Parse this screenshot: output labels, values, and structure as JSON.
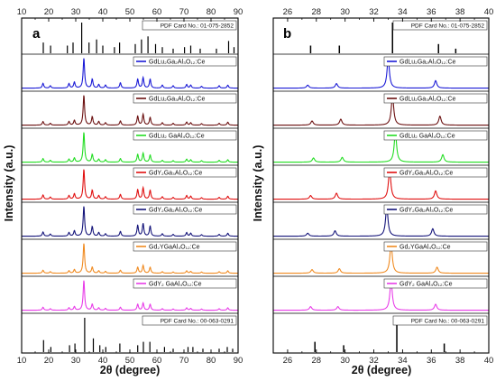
{
  "chart_data": [
    {
      "type": "line",
      "panel_label": "a",
      "xlabel": "2θ (degree)",
      "ylabel": "Intensity (a.u.)",
      "xlim": [
        10,
        90
      ],
      "xticks": [
        10,
        20,
        30,
        40,
        50,
        60,
        70,
        80,
        90
      ],
      "top_ticks": true,
      "grid": false,
      "legend_placement": "top-right of each strip",
      "reference_top": {
        "name": "PDF Card No.: 01-075-2852",
        "peaks": [
          [
            18.0,
            0.35
          ],
          [
            20.7,
            0.25
          ],
          [
            26.9,
            0.25
          ],
          [
            29.0,
            0.35
          ],
          [
            32.2,
            1.0
          ],
          [
            34.9,
            0.35
          ],
          [
            37.7,
            0.45
          ],
          [
            40.0,
            0.25
          ],
          [
            44.3,
            0.2
          ],
          [
            46.2,
            0.35
          ],
          [
            52.0,
            0.3
          ],
          [
            54.3,
            0.45
          ],
          [
            56.7,
            0.55
          ],
          [
            59.5,
            0.3
          ],
          [
            62.0,
            0.2
          ],
          [
            66.0,
            0.15
          ],
          [
            70.2,
            0.2
          ],
          [
            72.5,
            0.25
          ],
          [
            76.0,
            0.15
          ],
          [
            82.0,
            0.15
          ],
          [
            86.5,
            0.4
          ],
          [
            88.5,
            0.2
          ]
        ]
      },
      "series": [
        {
          "name": "GdLu₂Ga₂Al₃O₁₂:Ce",
          "color": "#1a1ad6",
          "peaks": [
            [
              17.9,
              0.16
            ],
            [
              20.6,
              0.08
            ],
            [
              27.5,
              0.15
            ],
            [
              29.5,
              0.2
            ],
            [
              33.0,
              1.0
            ],
            [
              36.1,
              0.3
            ],
            [
              38.5,
              0.12
            ],
            [
              41.0,
              0.1
            ],
            [
              46.5,
              0.18
            ],
            [
              52.9,
              0.3
            ],
            [
              54.9,
              0.35
            ],
            [
              57.5,
              0.3
            ],
            [
              62.0,
              0.1
            ],
            [
              66.0,
              0.08
            ],
            [
              71.0,
              0.12
            ],
            [
              72.5,
              0.1
            ],
            [
              76.5,
              0.06
            ],
            [
              83.0,
              0.08
            ],
            [
              86.2,
              0.1
            ]
          ]
        },
        {
          "name": "GdLu₂Ga₃Al₂O₁₂:Ce",
          "color": "#6b1010",
          "peaks": [
            [
              17.9,
              0.12
            ],
            [
              20.6,
              0.06
            ],
            [
              27.5,
              0.12
            ],
            [
              29.5,
              0.16
            ],
            [
              33.0,
              1.0
            ],
            [
              36.1,
              0.28
            ],
            [
              38.5,
              0.12
            ],
            [
              41.0,
              0.08
            ],
            [
              46.5,
              0.14
            ],
            [
              52.9,
              0.3
            ],
            [
              54.9,
              0.36
            ],
            [
              57.5,
              0.26
            ],
            [
              62.0,
              0.08
            ],
            [
              66.0,
              0.06
            ],
            [
              71.0,
              0.1
            ],
            [
              72.5,
              0.08
            ],
            [
              76.5,
              0.05
            ],
            [
              83.0,
              0.06
            ],
            [
              86.2,
              0.1
            ]
          ]
        },
        {
          "name": "GdLu₂ GaAl₄O₁₂:Ce",
          "color": "#22dd22",
          "peaks": [
            [
              17.9,
              0.12
            ],
            [
              20.6,
              0.06
            ],
            [
              27.5,
              0.1
            ],
            [
              29.5,
              0.14
            ],
            [
              33.0,
              1.0
            ],
            [
              36.1,
              0.26
            ],
            [
              38.5,
              0.1
            ],
            [
              41.0,
              0.08
            ],
            [
              46.5,
              0.12
            ],
            [
              52.9,
              0.26
            ],
            [
              54.9,
              0.3
            ],
            [
              57.5,
              0.24
            ],
            [
              62.0,
              0.06
            ],
            [
              66.0,
              0.05
            ],
            [
              71.0,
              0.1
            ],
            [
              72.5,
              0.08
            ],
            [
              76.5,
              0.05
            ],
            [
              83.0,
              0.06
            ],
            [
              86.2,
              0.08
            ]
          ]
        },
        {
          "name": "GdY₂Ga₃Al₂O₁₂:Ce",
          "color": "#e01010",
          "peaks": [
            [
              17.9,
              0.14
            ],
            [
              20.6,
              0.07
            ],
            [
              27.5,
              0.12
            ],
            [
              29.5,
              0.18
            ],
            [
              33.0,
              1.0
            ],
            [
              36.1,
              0.3
            ],
            [
              38.5,
              0.12
            ],
            [
              41.0,
              0.08
            ],
            [
              46.5,
              0.16
            ],
            [
              52.9,
              0.32
            ],
            [
              54.9,
              0.38
            ],
            [
              57.5,
              0.3
            ],
            [
              62.0,
              0.08
            ],
            [
              66.0,
              0.06
            ],
            [
              71.0,
              0.12
            ],
            [
              72.5,
              0.1
            ],
            [
              76.5,
              0.05
            ],
            [
              83.0,
              0.06
            ],
            [
              86.2,
              0.1
            ]
          ]
        },
        {
          "name": "GdY₂Ga₂Al₃O₁₂:Ce",
          "color": "#14147a",
          "peaks": [
            [
              17.9,
              0.14
            ],
            [
              20.6,
              0.07
            ],
            [
              27.5,
              0.12
            ],
            [
              29.5,
              0.18
            ],
            [
              33.0,
              1.0
            ],
            [
              36.1,
              0.32
            ],
            [
              38.5,
              0.12
            ],
            [
              41.0,
              0.08
            ],
            [
              46.5,
              0.16
            ],
            [
              52.9,
              0.36
            ],
            [
              54.9,
              0.42
            ],
            [
              57.5,
              0.34
            ],
            [
              62.0,
              0.08
            ],
            [
              66.0,
              0.06
            ],
            [
              71.0,
              0.12
            ],
            [
              72.5,
              0.1
            ],
            [
              76.5,
              0.05
            ],
            [
              83.0,
              0.06
            ],
            [
              86.2,
              0.1
            ]
          ]
        },
        {
          "name": "Gd₂YGaAl₄O₁₂:Ce",
          "color": "#f08a20",
          "peaks": [
            [
              17.9,
              0.1
            ],
            [
              20.6,
              0.05
            ],
            [
              27.5,
              0.08
            ],
            [
              29.5,
              0.12
            ],
            [
              33.0,
              1.0
            ],
            [
              36.1,
              0.2
            ],
            [
              38.5,
              0.08
            ],
            [
              41.0,
              0.06
            ],
            [
              46.5,
              0.1
            ],
            [
              52.9,
              0.2
            ],
            [
              54.9,
              0.26
            ],
            [
              57.5,
              0.2
            ],
            [
              62.0,
              0.05
            ],
            [
              66.0,
              0.04
            ],
            [
              71.0,
              0.08
            ],
            [
              72.5,
              0.06
            ],
            [
              76.5,
              0.04
            ],
            [
              83.0,
              0.05
            ],
            [
              86.2,
              0.08
            ]
          ]
        },
        {
          "name": "GdY₂ GaAl₄O₁₂:Ce",
          "color": "#e83ce8",
          "peaks": [
            [
              17.9,
              0.1
            ],
            [
              20.6,
              0.05
            ],
            [
              27.5,
              0.08
            ],
            [
              29.5,
              0.12
            ],
            [
              33.0,
              1.0
            ],
            [
              36.1,
              0.2
            ],
            [
              38.5,
              0.08
            ],
            [
              41.0,
              0.06
            ],
            [
              46.5,
              0.1
            ],
            [
              52.9,
              0.2
            ],
            [
              54.9,
              0.24
            ],
            [
              57.5,
              0.2
            ],
            [
              62.0,
              0.05
            ],
            [
              66.0,
              0.04
            ],
            [
              71.0,
              0.08
            ],
            [
              72.5,
              0.06
            ],
            [
              76.5,
              0.04
            ],
            [
              83.0,
              0.05
            ],
            [
              86.2,
              0.08
            ]
          ]
        }
      ],
      "reference_bottom": {
        "name": "PDF Card No.: 00-063-0291",
        "peaks": [
          [
            18.1,
            0.35
          ],
          [
            20.8,
            0.15
          ],
          [
            27.7,
            0.2
          ],
          [
            29.7,
            0.25
          ],
          [
            33.3,
            1.0
          ],
          [
            36.5,
            0.4
          ],
          [
            38.9,
            0.2
          ],
          [
            41.1,
            0.15
          ],
          [
            46.3,
            0.25
          ],
          [
            52.9,
            0.2
          ],
          [
            55.0,
            0.3
          ],
          [
            57.4,
            0.3
          ],
          [
            62.8,
            0.15
          ],
          [
            66.0,
            0.1
          ],
          [
            71.5,
            0.15
          ],
          [
            73.3,
            0.15
          ],
          [
            77.0,
            0.1
          ],
          [
            83.0,
            0.1
          ],
          [
            86.0,
            0.15
          ],
          [
            88.0,
            0.1
          ]
        ]
      }
    },
    {
      "type": "line",
      "panel_label": "b",
      "xlabel": "2θ (degree)",
      "ylabel": "Intensity (a.u.)",
      "xlim": [
        25,
        40
      ],
      "xticks": [
        26,
        28,
        30,
        32,
        34,
        36,
        38,
        40
      ],
      "top_ticks": true,
      "grid": false,
      "legend_placement": "top-right of each strip",
      "reference_top": {
        "name": "PDF Card No.: 01-075-2852",
        "peaks": [
          [
            27.6,
            0.25
          ],
          [
            29.6,
            0.25
          ],
          [
            33.3,
            1.0
          ],
          [
            36.5,
            0.3
          ],
          [
            37.7,
            0.15
          ]
        ]
      },
      "series": [
        {
          "name": "GdLu₂Ga₂Al₃O₁₂:Ce",
          "color": "#1a1ad6",
          "peaks": [
            [
              27.4,
              0.1
            ],
            [
              29.4,
              0.15
            ],
            [
              33.0,
              1.0
            ],
            [
              36.3,
              0.25
            ]
          ]
        },
        {
          "name": "GdLu₂Ga₃Al₂O₁₂:Ce",
          "color": "#6b1010",
          "peaks": [
            [
              27.7,
              0.14
            ],
            [
              29.7,
              0.2
            ],
            [
              33.3,
              1.0
            ],
            [
              36.6,
              0.3
            ]
          ]
        },
        {
          "name": "GdLu₂ GaAl₄O₁₂:Ce",
          "color": "#22dd22",
          "peaks": [
            [
              27.8,
              0.14
            ],
            [
              29.8,
              0.16
            ],
            [
              33.5,
              1.0
            ],
            [
              36.8,
              0.25
            ]
          ]
        },
        {
          "name": "GdY₂Ga₃Al₂O₁₂:Ce",
          "color": "#e01010",
          "peaks": [
            [
              27.6,
              0.12
            ],
            [
              29.4,
              0.2
            ],
            [
              33.1,
              1.0
            ],
            [
              36.3,
              0.28
            ]
          ]
        },
        {
          "name": "GdY₂Ga₂Al₃O₁₂:Ce",
          "color": "#14147a",
          "peaks": [
            [
              27.4,
              0.1
            ],
            [
              29.3,
              0.18
            ],
            [
              32.9,
              1.0
            ],
            [
              36.1,
              0.25
            ]
          ]
        },
        {
          "name": "Gd₂YGaAl₄O₁₂:Ce",
          "color": "#f08a20",
          "peaks": [
            [
              27.7,
              0.12
            ],
            [
              29.6,
              0.15
            ],
            [
              33.2,
              1.0
            ],
            [
              36.4,
              0.2
            ]
          ]
        },
        {
          "name": "GdY₂ GaAl₄O₁₂:Ce",
          "color": "#e83ce8",
          "peaks": [
            [
              27.6,
              0.12
            ],
            [
              29.5,
              0.12
            ],
            [
              33.2,
              1.0
            ],
            [
              36.3,
              0.2
            ]
          ]
        }
      ],
      "reference_bottom": {
        "name": "PDF Card No.: 00-063-0291",
        "peaks": [
          [
            27.9,
            0.3
          ],
          [
            29.9,
            0.2
          ],
          [
            33.6,
            1.0
          ],
          [
            36.9,
            0.25
          ]
        ]
      }
    }
  ]
}
